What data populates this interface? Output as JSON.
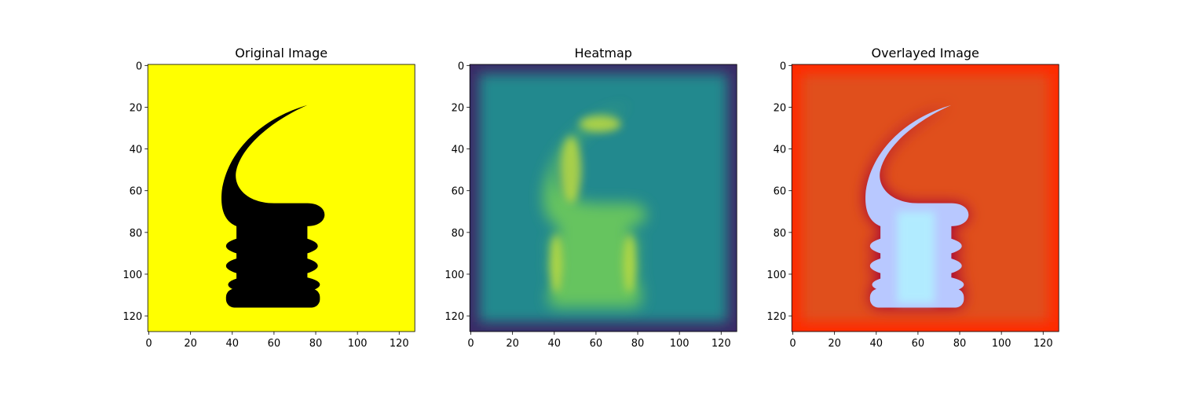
{
  "chart_data": [
    {
      "type": "image",
      "title": "Original Image",
      "xlim": [
        -0.5,
        127.5
      ],
      "ylim": [
        127.5,
        -0.5
      ],
      "xticks": [
        0,
        20,
        40,
        60,
        80,
        100,
        120
      ],
      "yticks": [
        0,
        20,
        40,
        60,
        80,
        100,
        120
      ]
    },
    {
      "type": "image",
      "title": "Heatmap",
      "xlim": [
        -0.5,
        127.5
      ],
      "ylim": [
        127.5,
        -0.5
      ],
      "xticks": [
        0,
        20,
        40,
        60,
        80,
        100,
        120
      ],
      "yticks": [
        0,
        20,
        40,
        60,
        80,
        100,
        120
      ]
    },
    {
      "type": "image",
      "title": "Overlayed Image",
      "xlim": [
        -0.5,
        127.5
      ],
      "ylim": [
        127.5,
        -0.5
      ],
      "xticks": [
        0,
        20,
        40,
        60,
        80,
        100,
        120
      ],
      "yticks": [
        0,
        20,
        40,
        60,
        80,
        100,
        120
      ]
    }
  ]
}
